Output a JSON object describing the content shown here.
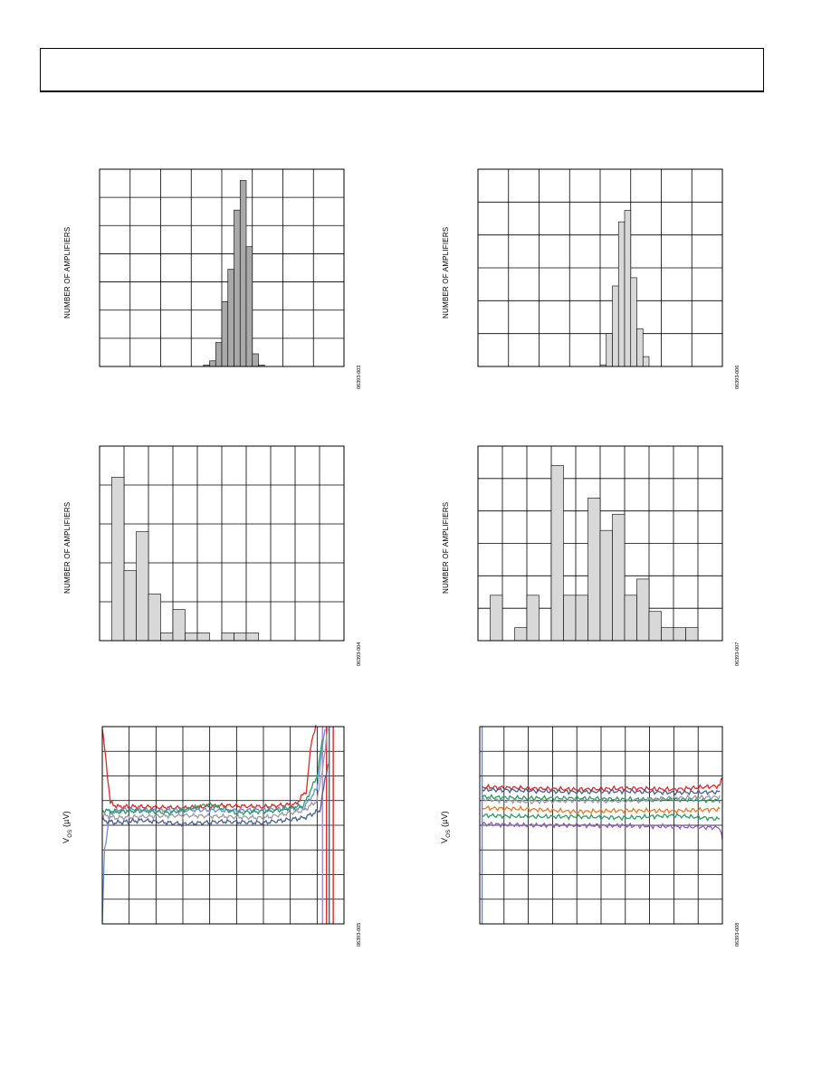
{
  "header": {
    "title": ""
  },
  "chart_data": [
    {
      "type": "bar",
      "ylabel": "NUMBER OF AMPLIFIERS",
      "fig_id": "06393-003",
      "bar_fill": "#a9a9a9",
      "grid": true,
      "xlim": [
        0,
        8
      ],
      "ylim": [
        0,
        7
      ],
      "x_divisions": 8,
      "y_divisions": 7,
      "bin_width": 0.2,
      "x": [
        3.5,
        3.7,
        3.9,
        4.1,
        4.3,
        4.5,
        4.7,
        4.9,
        5.1,
        5.3
      ],
      "values": [
        0.05,
        0.2,
        0.85,
        2.3,
        3.45,
        5.55,
        6.6,
        4.25,
        0.45,
        0.05
      ]
    },
    {
      "type": "bar",
      "ylabel": "NUMBER OF AMPLIFIERS",
      "fig_id": "06393-006",
      "bar_fill": "#d8d8d8",
      "grid": true,
      "xlim": [
        0,
        8
      ],
      "ylim": [
        0,
        6
      ],
      "x_divisions": 8,
      "y_divisions": 6,
      "bin_width": 0.2,
      "x": [
        4.1,
        4.3,
        4.5,
        4.7,
        4.9,
        5.1,
        5.3,
        5.5
      ],
      "values": [
        0.05,
        1.0,
        2.45,
        4.4,
        4.75,
        2.7,
        1.15,
        0.3
      ]
    },
    {
      "type": "bar",
      "ylabel": "NUMBER OF AMPLIFIERS",
      "fig_id": "06393-004",
      "bar_fill": "#d8d8d8",
      "grid": true,
      "xlim": [
        0,
        10
      ],
      "ylim": [
        0,
        5
      ],
      "x_divisions": 10,
      "y_divisions": 5,
      "bin_width": 0.5,
      "x": [
        0.75,
        1.25,
        1.75,
        2.25,
        2.75,
        3.25,
        3.75,
        4.25,
        5.25,
        5.75,
        6.25
      ],
      "values": [
        4.2,
        1.8,
        2.8,
        1.2,
        0.2,
        0.8,
        0.2,
        0.2,
        0.2,
        0.2,
        0.2
      ]
    },
    {
      "type": "bar",
      "ylabel": "NUMBER OF AMPLIFIERS",
      "fig_id": "06393-007",
      "bar_fill": "#d8d8d8",
      "grid": true,
      "xlim": [
        0,
        10
      ],
      "ylim": [
        0,
        6
      ],
      "x_divisions": 10,
      "y_divisions": 6,
      "bin_width": 0.5,
      "x": [
        0.75,
        1.25,
        1.75,
        2.25,
        2.75,
        3.25,
        3.75,
        4.25,
        4.75,
        5.25,
        5.75,
        6.25,
        6.75,
        7.25,
        7.75,
        8.25,
        8.75
      ],
      "values": [
        1.4,
        0.0,
        0.4,
        1.4,
        0.0,
        5.4,
        1.4,
        1.4,
        4.4,
        3.4,
        3.9,
        1.4,
        1.9,
        0.9,
        0.4,
        0.4,
        0.4
      ]
    },
    {
      "type": "line",
      "ylabel": "V",
      "ylabel_sub": "OS",
      "ylabel_unit": " (µV)",
      "fig_id": "06393-005",
      "grid": true,
      "xlim": [
        0,
        9
      ],
      "ylim": [
        0,
        8
      ],
      "x_divisions": 9,
      "y_divisions": 8,
      "series": [
        {
          "color": "#d92b2b",
          "values": [
            [
              0.0,
              7.9
            ],
            [
              0.15,
              6.5
            ],
            [
              0.3,
              4.9
            ],
            [
              0.6,
              4.75
            ],
            [
              1.5,
              4.75
            ],
            [
              3,
              4.7
            ],
            [
              4.5,
              4.8
            ],
            [
              6,
              4.75
            ],
            [
              7.2,
              4.85
            ],
            [
              7.6,
              5.4
            ],
            [
              7.8,
              7.5
            ],
            [
              7.95,
              8.0
            ]
          ]
        },
        {
          "color": "#6b8fd4",
          "values": [
            [
              0.0,
              0.0
            ],
            [
              0.08,
              3.0
            ],
            [
              0.3,
              4.5
            ],
            [
              0.8,
              4.65
            ],
            [
              2,
              4.6
            ],
            [
              3.5,
              4.62
            ],
            [
              5,
              4.6
            ],
            [
              6.5,
              4.65
            ],
            [
              7.5,
              4.7
            ],
            [
              8.0,
              5.5
            ],
            [
              8.3,
              8.0
            ]
          ]
        },
        {
          "color": "#2e9a64",
          "values": [
            [
              0.0,
              4.6
            ],
            [
              0.5,
              4.55
            ],
            [
              1.5,
              4.6
            ],
            [
              2.5,
              4.5
            ],
            [
              4,
              4.85
            ],
            [
              5,
              4.5
            ],
            [
              6.5,
              4.6
            ],
            [
              7.5,
              4.8
            ],
            [
              8.0,
              6.0
            ],
            [
              8.2,
              7.5
            ]
          ]
        },
        {
          "color": "#9a9aa8",
          "values": [
            [
              0.0,
              4.4
            ],
            [
              0.5,
              4.3
            ],
            [
              1.5,
              4.35
            ],
            [
              3,
              4.4
            ],
            [
              4.5,
              4.35
            ],
            [
              6,
              4.3
            ],
            [
              7.5,
              4.6
            ],
            [
              8.0,
              5.0
            ],
            [
              8.3,
              7.0
            ],
            [
              8.4,
              8.0
            ]
          ]
        },
        {
          "color": "#4a5f8a",
          "values": [
            [
              0.0,
              4.2
            ],
            [
              0.5,
              4.1
            ],
            [
              1.5,
              4.2
            ],
            [
              3,
              4.05
            ],
            [
              4.5,
              4.15
            ],
            [
              6,
              4.1
            ],
            [
              7.5,
              4.3
            ],
            [
              8.1,
              4.6
            ],
            [
              8.4,
              6.5
            ]
          ]
        }
      ],
      "verticals": [
        {
          "color": "#d92b2b",
          "x": 8.35
        },
        {
          "color": "#d92b2b",
          "x": 8.6
        },
        {
          "color": "#a58bd0",
          "x": 8.2
        },
        {
          "color": "#4a5f8a",
          "x": 8.45
        }
      ]
    },
    {
      "type": "line",
      "ylabel": "V",
      "ylabel_sub": "OS",
      "ylabel_unit": " (µV)",
      "fig_id": "06393-008",
      "grid": true,
      "xlim": [
        0,
        10
      ],
      "ylim": [
        0,
        8
      ],
      "x_divisions": 10,
      "y_divisions": 8,
      "series": [
        {
          "color": "#d92b2b",
          "values": [
            [
              0.1,
              5.55
            ],
            [
              2,
              5.5
            ],
            [
              4,
              5.45
            ],
            [
              6,
              5.5
            ],
            [
              8,
              5.45
            ],
            [
              9.9,
              5.6
            ],
            [
              10,
              6.0
            ]
          ]
        },
        {
          "color": "#4a5f8a",
          "values": [
            [
              0.1,
              5.45
            ],
            [
              2,
              5.4
            ],
            [
              4,
              5.35
            ],
            [
              6,
              5.38
            ],
            [
              8,
              5.32
            ],
            [
              9.9,
              5.35
            ]
          ]
        },
        {
          "color": "#2e9a64",
          "values": [
            [
              0.1,
              5.15
            ],
            [
              2,
              5.1
            ],
            [
              4,
              5.1
            ],
            [
              6,
              5.05
            ],
            [
              8,
              5.05
            ],
            [
              9.9,
              5.0
            ]
          ]
        },
        {
          "color": "#9a9aa8",
          "values": [
            [
              0.1,
              5.05
            ],
            [
              2,
              4.95
            ],
            [
              4,
              5.0
            ],
            [
              6,
              4.98
            ],
            [
              8,
              5.1
            ],
            [
              9.9,
              5.15
            ]
          ]
        },
        {
          "color": "#e37a2b",
          "values": [
            [
              0.1,
              4.7
            ],
            [
              2,
              4.65
            ],
            [
              4,
              4.55
            ],
            [
              6,
              4.6
            ],
            [
              8,
              4.58
            ],
            [
              9.9,
              4.65
            ]
          ]
        },
        {
          "color": "#2e9a64",
          "values": [
            [
              0.1,
              4.4
            ],
            [
              2,
              4.35
            ],
            [
              4,
              4.35
            ],
            [
              6,
              4.3
            ],
            [
              8,
              4.4
            ],
            [
              9.9,
              4.25
            ]
          ]
        },
        {
          "color": "#8f5fb8",
          "values": [
            [
              0.1,
              4.05
            ],
            [
              2,
              4.0
            ],
            [
              4,
              4.0
            ],
            [
              6,
              3.98
            ],
            [
              8,
              3.95
            ],
            [
              9.9,
              3.9
            ],
            [
              10,
              3.4
            ]
          ]
        }
      ],
      "spike": {
        "color": "#4a5f8a",
        "x": 0.1
      }
    }
  ]
}
